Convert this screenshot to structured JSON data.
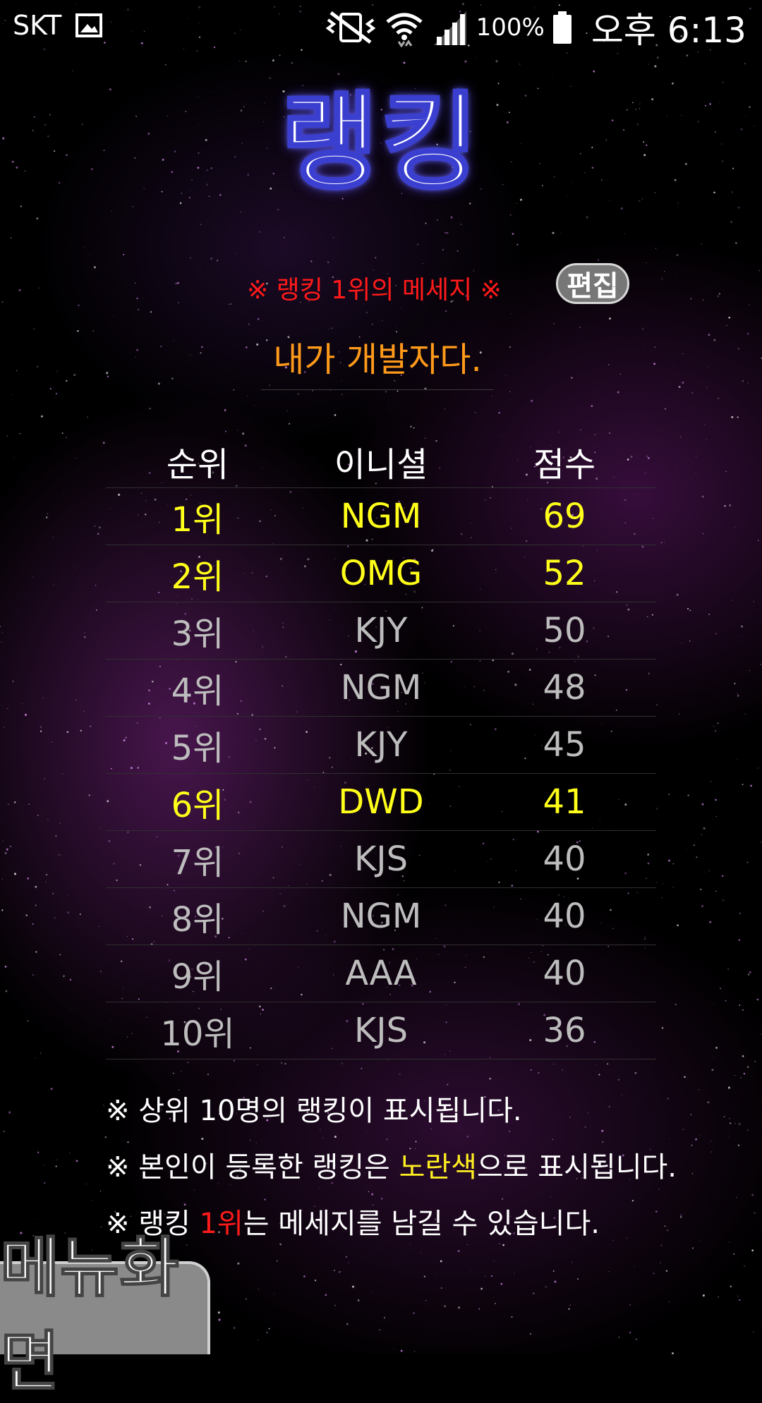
{
  "status_bar": {
    "carrier": "SKT",
    "battery": "100%",
    "time": "오후 6:13",
    "icons": [
      "image-icon",
      "mute-vibrate-icon",
      "wifi-icon",
      "signal-icon",
      "battery-icon"
    ]
  },
  "title": "랭킹",
  "message_section": {
    "label": "※ 랭킹 1위의 메세지 ※",
    "edit_button": "편집",
    "champion_message": "내가 개발자다."
  },
  "ranking_table": {
    "headers": [
      "순위",
      "이니셜",
      "점수"
    ],
    "rows": [
      {
        "rank": "1위",
        "initials": "NGM",
        "score": "69",
        "mine": true
      },
      {
        "rank": "2위",
        "initials": "OMG",
        "score": "52",
        "mine": true
      },
      {
        "rank": "3위",
        "initials": "KJY",
        "score": "50",
        "mine": false
      },
      {
        "rank": "4위",
        "initials": "NGM",
        "score": "48",
        "mine": false
      },
      {
        "rank": "5위",
        "initials": "KJY",
        "score": "45",
        "mine": false
      },
      {
        "rank": "6위",
        "initials": "DWD",
        "score": "41",
        "mine": true
      },
      {
        "rank": "7위",
        "initials": "KJS",
        "score": "40",
        "mine": false
      },
      {
        "rank": "8위",
        "initials": "NGM",
        "score": "40",
        "mine": false
      },
      {
        "rank": "9위",
        "initials": "AAA",
        "score": "40",
        "mine": false
      },
      {
        "rank": "10위",
        "initials": "KJS",
        "score": "36",
        "mine": false
      }
    ]
  },
  "notes": {
    "note1": "※ 상위 10명의 랭킹이 표시됩니다.",
    "note2_prefix": "※ 본인이 등록한 랭킹은 ",
    "note2_highlight": "노란색",
    "note2_suffix": "으로 표시됩니다.",
    "note3_prefix": "※ 랭킹 ",
    "note3_highlight": "1위",
    "note3_suffix": "는 메세지를 남길 수 있습니다."
  },
  "menu_button": "메뉴화면",
  "colors": {
    "mine": "#ffff1a",
    "other": "#bdbdbd",
    "message_label": "#ff1a1a",
    "champion_message": "#ff9a1a"
  }
}
